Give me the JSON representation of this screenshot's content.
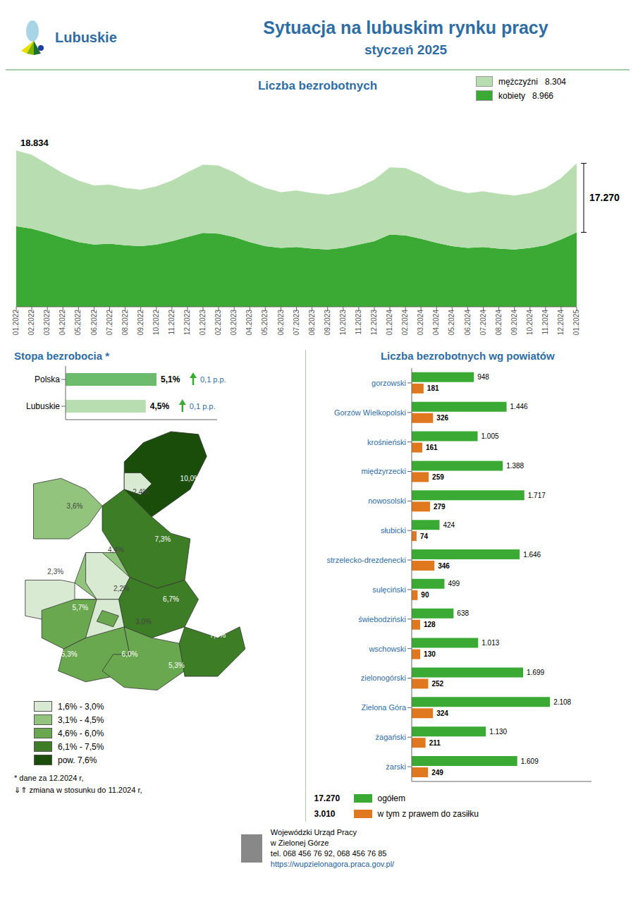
{
  "title": "Sytuacja na lubuskim rynku pracy",
  "subtitle": "styczeń 2025",
  "annotations": [
    "Lubuskie",
    "* dane za 12.2024 r,",
    "⇓⇑ zmiana w stosunku do 11.2024 r,",
    "Wojewódzki Urząd Pracy\nw Zielonej Górze",
    "tel. 068 456 76 92,  068 456 76 85",
    "https://wupzielonagora.praca.gov.pl/"
  ],
  "chart_data": [
    {
      "type": "area",
      "title": "Liczba bezrobotnych",
      "categories": [
        "01.2022",
        "02.2022",
        "03.2022",
        "04.2022",
        "05.2022",
        "06.2022",
        "07.2022",
        "08.2022",
        "09.2022",
        "10.2022",
        "11.2022",
        "12.2022",
        "01.2023",
        "02.2023",
        "03.2023",
        "04.2023",
        "05.2023",
        "06.2023",
        "07.2023",
        "08.2023",
        "09.2023",
        "10.2023",
        "11.2023",
        "12.2023",
        "01.2024",
        "02.2024",
        "03.2024",
        "04.2024",
        "05.2024",
        "06.2024",
        "07.2024",
        "08.2024",
        "09.2024",
        "10.2024",
        "11.2024",
        "12.2024",
        "01.2025"
      ],
      "stacked": true,
      "series": [
        {
          "name": "mężczyźni   8.304",
          "color": "#b8ddb0",
          "values": [
            9134,
            8900,
            8300,
            7800,
            7400,
            7100,
            7100,
            6900,
            6800,
            7000,
            7300,
            7800,
            8200,
            8200,
            7800,
            7300,
            7000,
            6700,
            6800,
            6700,
            6600,
            6700,
            6900,
            7400,
            8100,
            8100,
            7700,
            7100,
            6800,
            6600,
            6700,
            6600,
            6500,
            6600,
            6900,
            7400,
            8304
          ]
        },
        {
          "name": "kobiety   8.966",
          "color": "#3aaa35",
          "values": [
            9700,
            9400,
            8900,
            8300,
            7800,
            7500,
            7600,
            7400,
            7300,
            7500,
            7900,
            8400,
            8900,
            8800,
            8400,
            7800,
            7300,
            7100,
            7200,
            7000,
            6900,
            7100,
            7500,
            7900,
            8700,
            8600,
            8200,
            7700,
            7300,
            7100,
            7200,
            7000,
            6900,
            7100,
            7400,
            8100,
            8966
          ]
        }
      ],
      "ylim": [
        0,
        22500
      ],
      "tick_labels": "x",
      "legend": "top right",
      "annotations": [
        "18.834",
        "17.270"
      ]
    },
    {
      "type": "bar",
      "orientation": "horizontal",
      "title": "Stopa bezrobocia *",
      "categories": [
        "Polska",
        "Lubuskie"
      ],
      "values": [
        5.1,
        4.5
      ],
      "value_labels": [
        "5,1%",
        "4,5%"
      ],
      "colors": [
        "#6dbb6d",
        "#b8ddb0"
      ],
      "data_labels": true,
      "xlim": [
        0,
        8.5
      ],
      "tick_labels": "y",
      "annotations": [
        "0,1 p.p.",
        "0,1 p.p."
      ]
    },
    {
      "type": "map",
      "legend": "bottom",
      "series": [
        {
          "name": "1,6% - 3,0%",
          "color": "#d9ead3",
          "values": [
            null,
            2.4,
            null,
            null,
            null,
            2.3,
            null,
            2.2,
            3.0,
            null,
            null,
            null,
            null,
            null
          ],
          "value_labels": [
            null,
            "2,4%",
            null,
            null,
            null,
            "2,3%",
            null,
            "2,2%",
            "3,0%",
            null,
            null,
            null,
            null,
            null
          ]
        },
        {
          "name": "3,1% - 4,5%",
          "color": "#93c47d",
          "values": [
            null,
            null,
            3.6,
            null,
            4.4,
            null,
            null,
            null,
            null,
            null,
            null,
            null,
            null,
            null
          ],
          "value_labels": [
            null,
            null,
            "3,6%",
            null,
            "4,4%",
            null,
            null,
            null,
            null,
            null,
            null,
            null,
            null,
            null
          ]
        },
        {
          "name": "4,6% - 6,0%",
          "color": "#6aa84f",
          "values": [
            null,
            null,
            null,
            null,
            null,
            null,
            null,
            null,
            null,
            5.7,
            6.0,
            5.3,
            5.3,
            null
          ],
          "value_labels": [
            null,
            null,
            null,
            null,
            null,
            null,
            null,
            null,
            null,
            "5,7%",
            "6,0%",
            "5,3%",
            "5,3%",
            null
          ]
        },
        {
          "name": "6,1% - 7,5%",
          "color": "#3d7d26",
          "values": [
            null,
            null,
            null,
            7.3,
            null,
            null,
            6.7,
            null,
            null,
            null,
            null,
            null,
            null,
            7.5
          ],
          "value_labels": [
            null,
            null,
            null,
            "7,3%",
            null,
            null,
            "6,7%",
            null,
            null,
            null,
            null,
            null,
            null,
            "7,5%"
          ]
        },
        {
          "name": "pow. 7,6%",
          "color": "#1a4d0a",
          "values": [
            10.0,
            null,
            null,
            null,
            null,
            null,
            null,
            null,
            null,
            null,
            null,
            null,
            null,
            null
          ],
          "value_labels": [
            "10,0%",
            null,
            null,
            null,
            null,
            null,
            null,
            null,
            null,
            null,
            null,
            null,
            null,
            null
          ]
        }
      ]
    },
    {
      "type": "bar",
      "orientation": "horizontal",
      "title": "Liczba bezrobotnych wg powiatów",
      "categories": [
        "gorzowski",
        "Gorzów Wielkopolski",
        "krośnieński",
        "międzyrzecki",
        "nowosolski",
        "słubicki",
        "strzelecko-drezdenecki",
        "sulęciński",
        "świebodziński",
        "wschowski",
        "zielonogórski",
        "Zielona Góra",
        "żagański",
        "żarski"
      ],
      "series": [
        {
          "name": "ogółem",
          "color": "#3aaa35",
          "values": [
            948,
            1446,
            1005,
            1388,
            1717,
            424,
            1646,
            499,
            638,
            1013,
            1699,
            2108,
            1130,
            1609
          ],
          "value_labels": [
            "948",
            "1.446",
            "1.005",
            "1.388",
            "1.717",
            "424",
            "1.646",
            "499",
            "638",
            "1.013",
            "1.699",
            "2.108",
            "1.130",
            "1.609"
          ]
        },
        {
          "name": "w tym z prawem do zasiłku",
          "color": "#e07820",
          "values": [
            181,
            326,
            161,
            259,
            279,
            74,
            346,
            90,
            128,
            130,
            252,
            324,
            211,
            249
          ]
        }
      ],
      "data_labels": true,
      "xlim": [
        0,
        2740.4
      ],
      "tick_labels": "y",
      "legend": "bottom left",
      "annotations": [
        "17.270",
        "3.010"
      ]
    }
  ]
}
